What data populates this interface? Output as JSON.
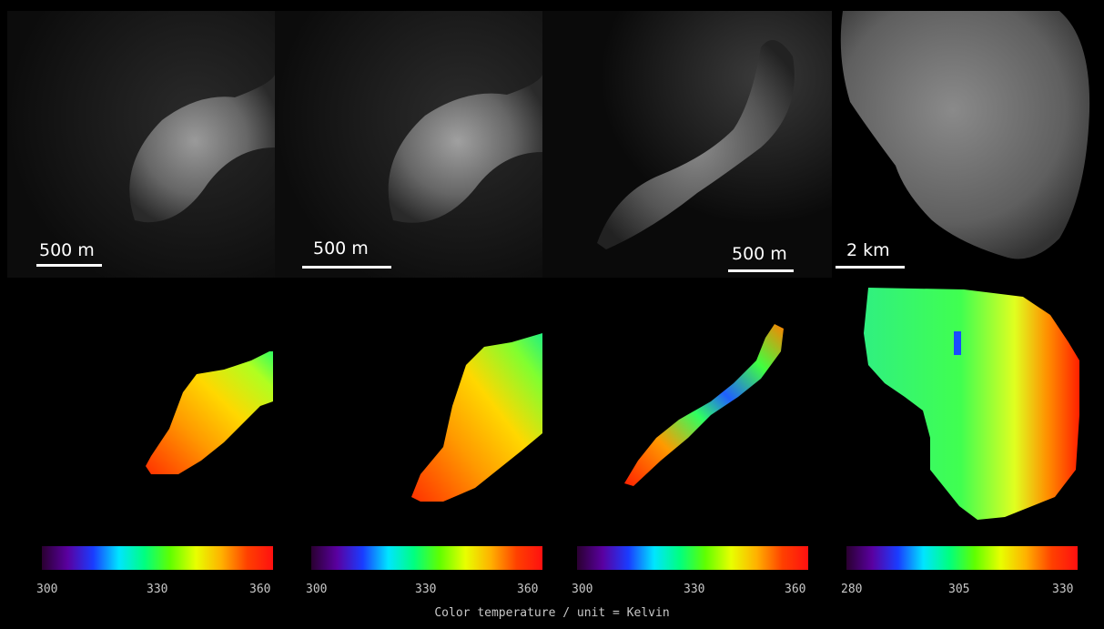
{
  "panels": [
    {
      "scale": "500 m",
      "ticks": [
        "300",
        "330",
        "360"
      ]
    },
    {
      "scale": "500 m",
      "ticks": [
        "300",
        "330",
        "360"
      ]
    },
    {
      "scale": "500 m",
      "ticks": [
        "300",
        "330",
        "360"
      ]
    },
    {
      "scale": "2 km",
      "ticks": [
        "280",
        "305",
        "330"
      ]
    }
  ],
  "caption": "Color temperature / unit = Kelvin",
  "colormap": [
    "#2a0030",
    "#5a00a0",
    "#1a3cff",
    "#00e5ff",
    "#00ff80",
    "#60ff00",
    "#e8ff00",
    "#ffb000",
    "#ff4000",
    "#ff1010"
  ]
}
